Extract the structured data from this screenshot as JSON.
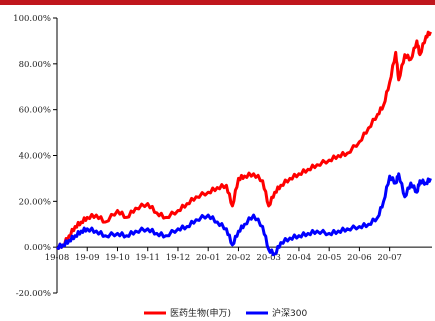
{
  "chart_data": {
    "type": "line",
    "x_tick_labels": [
      "19-08",
      "19-09",
      "19-10",
      "19-11",
      "19-12",
      "20-01",
      "20-02",
      "20-03",
      "20-04",
      "20-05",
      "20-06",
      "20-07"
    ],
    "y_tick_labels": [
      "100.00%",
      "80.00%",
      "60.00%",
      "40.00%",
      "20.00%",
      "0.00%",
      "-20.00%"
    ],
    "y_ticks": [
      100,
      80,
      60,
      40,
      20,
      0,
      -20
    ],
    "ylim": [
      -20,
      100
    ],
    "xlim": [
      0,
      12.4
    ],
    "grid": false,
    "legend_position": "bottom",
    "series": [
      {
        "name": "医药生物(申万)",
        "color": "#ff0000",
        "x": [
          0,
          0.2,
          0.4,
          0.6,
          0.8,
          1.0,
          1.3,
          1.6,
          2.0,
          2.3,
          2.6,
          3.0,
          3.3,
          3.6,
          4.0,
          4.3,
          4.6,
          5.0,
          5.3,
          5.6,
          5.8,
          6.0,
          6.2,
          6.5,
          6.8,
          7.0,
          7.2,
          7.4,
          7.7,
          8.0,
          8.3,
          8.6,
          9.0,
          9.3,
          9.6,
          10.0,
          10.3,
          10.6,
          10.8,
          11.0,
          11.2,
          11.3,
          11.5,
          11.7,
          11.9,
          12.0,
          12.2,
          12.35
        ],
        "values": [
          0,
          1,
          5,
          9,
          11,
          13,
          14,
          11,
          16,
          13,
          17,
          19,
          15,
          13,
          16,
          19,
          22,
          24,
          26,
          27,
          18,
          30,
          31,
          32,
          29,
          18,
          24,
          27,
          30,
          32,
          34,
          36,
          38,
          40,
          41,
          46,
          52,
          58,
          62,
          72,
          85,
          73,
          84,
          82,
          90,
          84,
          92,
          94
        ]
      },
      {
        "name": "沪深300",
        "color": "#0000ff",
        "x": [
          0,
          0.2,
          0.4,
          0.6,
          0.8,
          1.0,
          1.3,
          1.6,
          2.0,
          2.3,
          2.6,
          3.0,
          3.3,
          3.6,
          4.0,
          4.3,
          4.6,
          5.0,
          5.3,
          5.6,
          5.8,
          6.0,
          6.2,
          6.5,
          6.8,
          7.0,
          7.2,
          7.4,
          7.7,
          8.0,
          8.3,
          8.6,
          9.0,
          9.3,
          9.6,
          10.0,
          10.3,
          10.6,
          10.8,
          11.0,
          11.2,
          11.3,
          11.5,
          11.7,
          11.9,
          12.0,
          12.2,
          12.35
        ],
        "values": [
          0,
          1,
          3,
          5,
          7,
          8,
          7,
          5,
          6,
          5,
          7,
          8,
          6,
          5,
          8,
          9,
          12,
          14,
          11,
          8,
          1,
          7,
          10,
          14,
          9,
          -1,
          -3,
          2,
          4,
          5,
          6,
          7,
          6,
          7,
          8,
          9,
          10,
          13,
          20,
          31,
          28,
          32,
          22,
          28,
          24,
          29,
          28,
          30
        ]
      }
    ]
  }
}
